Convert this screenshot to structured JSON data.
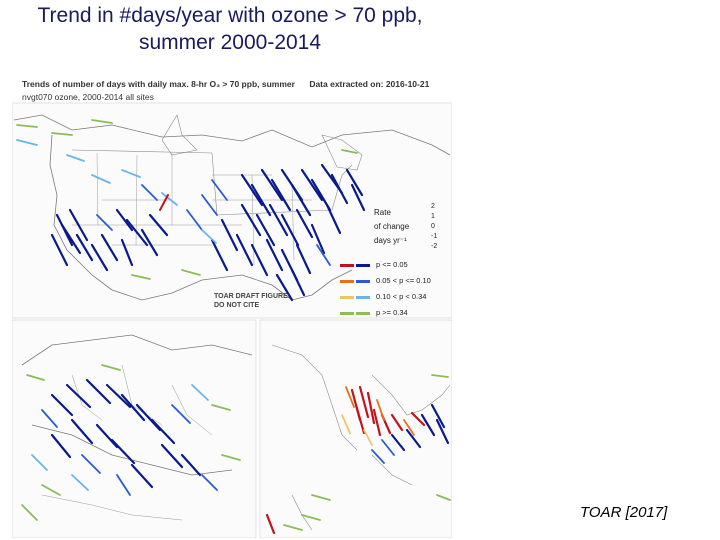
{
  "title": {
    "line1": "Trend in #days/year with ozone > 70 ppb,",
    "line2": "summer 2000-2014"
  },
  "figure": {
    "header": "Trends of number of days with daily max. 8-hr O₃ > 70 ppb, summer",
    "extracted": "Data extracted on:   2016-10-21",
    "subheader": "nvgt070 ozone, 2000-2014   all sites",
    "draft_line1": "TOAR DRAFT FIGURE:",
    "draft_line2": "DO NOT CITE",
    "rate_label": [
      "Rate",
      "of change",
      "days yr⁻¹"
    ],
    "rate_ticks": [
      "2",
      "1",
      "0",
      "-1",
      "-2"
    ]
  },
  "legend": {
    "rows": [
      {
        "label": "p <= 0.05",
        "color_neg": "#c0141c",
        "color_pos": "#0a1a8c"
      },
      {
        "label": "0.05 < p <= 0.10",
        "color_neg": "#e8701a",
        "color_pos": "#2a5ad8"
      },
      {
        "label": "0.10 < p < 0.34",
        "color_neg": "#f2c46a",
        "color_pos": "#6ab4ea"
      },
      {
        "label": "p >= 0.34",
        "color_neg": "#8cbc58",
        "color_pos": "#8cbc58"
      }
    ]
  },
  "citation": "TOAR [2017]",
  "colors": {
    "title": "#1a1a60",
    "map_border": "#6c6c6c",
    "map_land": "#ffffff",
    "decrease_sig": "#0a1a8c",
    "decrease_mid": "#2a5ad8",
    "decrease_weak": "#6ab4ea",
    "increase_sig": "#c0141c",
    "increase_mid": "#e8701a",
    "increase_weak": "#f2c46a",
    "insignificant": "#8cbc58"
  }
}
